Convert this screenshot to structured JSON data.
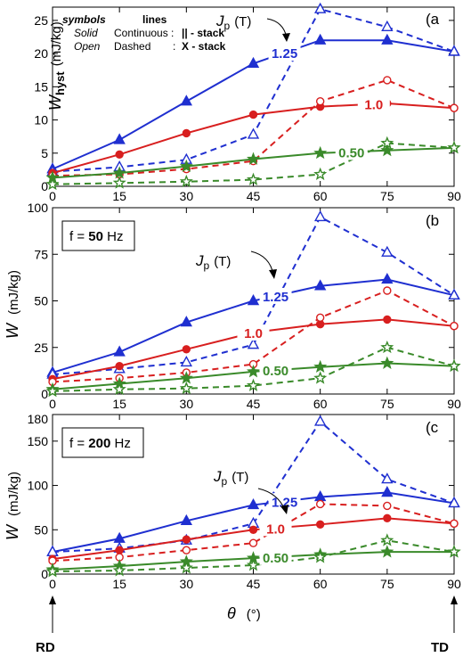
{
  "chart_data": [
    {
      "panel": "(a",
      "type": "line",
      "ylabel_main": "W",
      "ylabel_sub": "hyst",
      "ylabel_unit": "(mJ/kg)",
      "ylim": [
        0,
        27
      ],
      "yticks": [
        0,
        5,
        10,
        15,
        20,
        25
      ],
      "xlim": [
        0,
        90
      ],
      "xticks": [
        0,
        15,
        30,
        45,
        60,
        75,
        90
      ],
      "jp_label": "J",
      "jp_sub": "p",
      "jp_unit": "(T)",
      "legend": {
        "h1": "symbols",
        "h2": "lines",
        "r1a": "Solid",
        "r1b": "Continuous :",
        "r1c": "|| - stack",
        "r2a": "Open",
        "r2b": "Dashed",
        "r2c": ":",
        "r2d": "X - stack"
      },
      "series": [
        {
          "name": "1.25",
          "color": "#1f2fd0",
          "marker": "triangle",
          "style": "solid",
          "x": [
            0,
            15,
            30,
            45,
            60,
            75,
            90
          ],
          "y": [
            2.6,
            7.0,
            12.8,
            18.5,
            22.0,
            22.0,
            20.3
          ]
        },
        {
          "name": "1.25",
          "color": "#1f2fd0",
          "marker": "triangle",
          "style": "dashed",
          "x": [
            0,
            15,
            30,
            45,
            60,
            75,
            90
          ],
          "y": [
            2.2,
            2.9,
            4.0,
            7.8,
            26.7,
            24.0,
            20.3
          ]
        },
        {
          "name": "1.0",
          "color": "#d81f1f",
          "marker": "circle",
          "style": "solid",
          "x": [
            0,
            15,
            30,
            45,
            60,
            75,
            90
          ],
          "y": [
            2.0,
            4.8,
            8.0,
            10.8,
            12.0,
            12.5,
            11.8
          ]
        },
        {
          "name": "1.0",
          "color": "#d81f1f",
          "marker": "circle",
          "style": "dashed",
          "x": [
            0,
            15,
            30,
            45,
            60,
            75,
            90
          ],
          "y": [
            1.6,
            1.8,
            2.6,
            3.8,
            12.8,
            16.0,
            11.8
          ]
        },
        {
          "name": "0.50",
          "color": "#3a8a2a",
          "marker": "star",
          "style": "solid",
          "x": [
            0,
            15,
            30,
            45,
            60,
            75,
            90
          ],
          "y": [
            1.3,
            2.0,
            3.0,
            4.1,
            5.0,
            5.4,
            5.8
          ]
        },
        {
          "name": "0.50",
          "color": "#3a8a2a",
          "marker": "star",
          "style": "dashed",
          "x": [
            0,
            15,
            30,
            45,
            60,
            75,
            90
          ],
          "y": [
            0.3,
            0.5,
            0.7,
            1.0,
            1.8,
            6.5,
            5.8
          ]
        }
      ]
    },
    {
      "panel": "(b",
      "type": "line",
      "ylabel_main": "W",
      "ylabel_unit": "(mJ/kg)",
      "freq_prefix": "f =",
      "freq_value": "50",
      "freq_unit": "Hz",
      "ylim": [
        0,
        100
      ],
      "yticks": [
        0,
        25,
        50,
        75,
        100
      ],
      "xlim": [
        0,
        90
      ],
      "xticks": [
        0,
        15,
        30,
        45,
        60,
        75,
        90
      ],
      "jp_label": "J",
      "jp_sub": "p",
      "jp_unit": "(T)",
      "series": [
        {
          "name": "1.25",
          "color": "#1f2fd0",
          "marker": "triangle",
          "style": "solid",
          "x": [
            0,
            15,
            30,
            45,
            60,
            75,
            90
          ],
          "y": [
            11.5,
            22.5,
            38.5,
            50.0,
            58.0,
            61.5,
            53.0
          ]
        },
        {
          "name": "1.25",
          "color": "#1f2fd0",
          "marker": "triangle",
          "style": "dashed",
          "x": [
            0,
            15,
            30,
            45,
            60,
            75,
            90
          ],
          "y": [
            10.5,
            13.5,
            17.0,
            26.5,
            95.0,
            76.0,
            53.0
          ]
        },
        {
          "name": "1.0",
          "color": "#d81f1f",
          "marker": "circle",
          "style": "solid",
          "x": [
            0,
            15,
            30,
            45,
            60,
            75,
            90
          ],
          "y": [
            8.0,
            15.0,
            24.0,
            33.0,
            37.5,
            40.0,
            36.5
          ]
        },
        {
          "name": "1.0",
          "color": "#d81f1f",
          "marker": "circle",
          "style": "dashed",
          "x": [
            0,
            15,
            30,
            45,
            60,
            75,
            90
          ],
          "y": [
            6.5,
            8.5,
            11.5,
            16.0,
            41.0,
            55.5,
            36.5
          ]
        },
        {
          "name": "0.50",
          "color": "#3a8a2a",
          "marker": "star",
          "style": "solid",
          "x": [
            0,
            15,
            30,
            45,
            60,
            75,
            90
          ],
          "y": [
            2.5,
            5.5,
            8.5,
            12.0,
            14.5,
            16.5,
            15.0
          ]
        },
        {
          "name": "0.50",
          "color": "#3a8a2a",
          "marker": "star",
          "style": "dashed",
          "x": [
            0,
            15,
            30,
            45,
            60,
            75,
            90
          ],
          "y": [
            1.5,
            2.5,
            3.0,
            4.5,
            8.5,
            25.0,
            15.0
          ]
        }
      ]
    },
    {
      "panel": "(c",
      "type": "line",
      "ylabel_main": "W",
      "ylabel_unit": "(mJ/kg)",
      "freq_prefix": "f =",
      "freq_value": "200",
      "freq_unit": "Hz",
      "ylim": [
        0,
        180
      ],
      "yticks": [
        0,
        50,
        100,
        150
      ],
      "ytick_top": "180",
      "xlim": [
        0,
        90
      ],
      "xticks": [
        0,
        15,
        30,
        45,
        60,
        75,
        90
      ],
      "xlabel": "θ",
      "xlabel_unit": "(°)",
      "rd_label": "RD",
      "td_label": "TD",
      "jp_label": "J",
      "jp_sub": "p",
      "jp_unit": "(T)",
      "series": [
        {
          "name": "1.25",
          "color": "#1f2fd0",
          "marker": "triangle",
          "style": "solid",
          "x": [
            0,
            15,
            30,
            45,
            60,
            75,
            90
          ],
          "y": [
            25,
            40,
            60,
            78,
            87,
            92,
            80
          ]
        },
        {
          "name": "1.25",
          "color": "#1f2fd0",
          "marker": "triangle",
          "style": "dashed",
          "x": [
            0,
            15,
            30,
            45,
            60,
            75,
            90
          ],
          "y": [
            25,
            29,
            38,
            57,
            172,
            107,
            80
          ]
        },
        {
          "name": "1.0",
          "color": "#d81f1f",
          "marker": "circle",
          "style": "solid",
          "x": [
            0,
            15,
            30,
            45,
            60,
            75,
            90
          ],
          "y": [
            17,
            27,
            39,
            50,
            56,
            63,
            57
          ]
        },
        {
          "name": "1.0",
          "color": "#d81f1f",
          "marker": "circle",
          "style": "dashed",
          "x": [
            0,
            15,
            30,
            45,
            60,
            75,
            90
          ],
          "y": [
            15,
            19,
            27,
            35,
            79,
            77,
            57
          ]
        },
        {
          "name": "0.50",
          "color": "#3a8a2a",
          "marker": "star",
          "style": "solid",
          "x": [
            0,
            15,
            30,
            45,
            60,
            75,
            90
          ],
          "y": [
            5,
            9,
            14,
            18,
            22,
            25,
            25
          ]
        },
        {
          "name": "0.50",
          "color": "#3a8a2a",
          "marker": "star",
          "style": "dashed",
          "x": [
            0,
            15,
            30,
            45,
            60,
            75,
            90
          ],
          "y": [
            3,
            4,
            7,
            10,
            19,
            38,
            25
          ]
        }
      ]
    }
  ]
}
